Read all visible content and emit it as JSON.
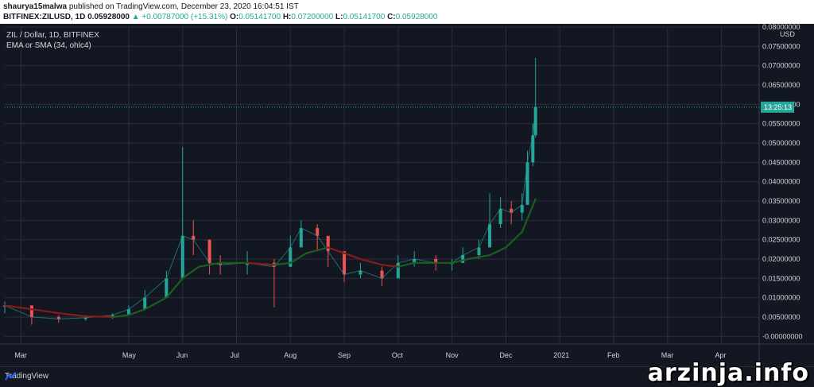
{
  "header": {
    "author": "shaurya15malwa",
    "published": "published on TradingView.com, December 23, 2020 16:04:51 IST",
    "symbol": "BITFINEX:ZILUSD, 1D",
    "last": "0.05928000",
    "change": "▲ +0.00787000 (+15.31%)",
    "o_label": "O:",
    "o": "0.05141700",
    "h_label": "H:",
    "h": "0.07200000",
    "l_label": "L:",
    "l": "0.05141700",
    "c_label": "C:",
    "c": "0.05928000"
  },
  "legend": {
    "title": "ZIL / Dollar, 1D, BITFINEX",
    "indicator": "EMA or SMA (34, ohlc4)"
  },
  "footer": {
    "brand": "TradingView",
    "watermark": "arzinja.info"
  },
  "colors": {
    "bg": "#131722",
    "grid": "#2a2e39",
    "up": "#26a69a",
    "down": "#ef5350",
    "ma_green": "#1b5e20",
    "ma_red": "#8b1a1a",
    "axis_text": "#d1d4dc",
    "price_tag": "#26a69a"
  },
  "chart_data": {
    "type": "line",
    "currency": "USD",
    "price_tag": "13:25:13",
    "current_price": 0.05928,
    "y_ticks": [
      "0.08000000",
      "0.07500000",
      "0.07000000",
      "0.06500000",
      "0.06000000",
      "0.05500000",
      "0.05000000",
      "0.04500000",
      "0.04000000",
      "0.03500000",
      "0.03000000",
      "0.02500000",
      "0.02000000",
      "0.01500000",
      "0.01000000",
      "0.00500000",
      "-0.00000000"
    ],
    "ylim": [
      -0.002,
      0.08
    ],
    "x_ticks": [
      "Mar",
      "May",
      "Jun",
      "Jul",
      "Aug",
      "Sep",
      "Oct",
      "Nov",
      "Dec",
      "2021",
      "Feb",
      "Mar",
      "Apr"
    ],
    "x_tick_pos": [
      0.3,
      2.3,
      3.3,
      4.3,
      5.3,
      6.3,
      7.3,
      8.3,
      9.3,
      10.3,
      11.3,
      12.3,
      13.3
    ],
    "xlim": [
      0,
      14
    ],
    "price_series": {
      "x": [
        0,
        0.5,
        1.0,
        1.5,
        2.0,
        2.3,
        2.6,
        3.0,
        3.3,
        3.5,
        3.8,
        4.0,
        4.5,
        5.0,
        5.3,
        5.5,
        5.8,
        6.0,
        6.3,
        6.6,
        7.0,
        7.3,
        7.6,
        8.0,
        8.3,
        8.5,
        8.8,
        9.0,
        9.2,
        9.4,
        9.6,
        9.7,
        9.8,
        9.85
      ],
      "close": [
        0.008,
        0.005,
        0.0045,
        0.0048,
        0.0055,
        0.007,
        0.01,
        0.015,
        0.026,
        0.025,
        0.019,
        0.0185,
        0.019,
        0.018,
        0.023,
        0.028,
        0.026,
        0.022,
        0.016,
        0.017,
        0.015,
        0.019,
        0.02,
        0.019,
        0.019,
        0.021,
        0.023,
        0.029,
        0.033,
        0.032,
        0.034,
        0.045,
        0.052,
        0.0593
      ],
      "high": [
        0.009,
        0.006,
        0.0055,
        0.0055,
        0.006,
        0.008,
        0.012,
        0.017,
        0.049,
        0.03,
        0.022,
        0.021,
        0.022,
        0.02,
        0.026,
        0.03,
        0.029,
        0.024,
        0.019,
        0.019,
        0.018,
        0.021,
        0.022,
        0.021,
        0.02,
        0.023,
        0.025,
        0.037,
        0.036,
        0.035,
        0.037,
        0.048,
        0.055,
        0.072
      ],
      "low": [
        0.006,
        0.003,
        0.0035,
        0.004,
        0.0045,
        0.006,
        0.009,
        0.013,
        0.022,
        0.021,
        0.016,
        0.016,
        0.016,
        0.0075,
        0.018,
        0.024,
        0.022,
        0.018,
        0.014,
        0.015,
        0.013,
        0.016,
        0.018,
        0.017,
        0.017,
        0.019,
        0.02,
        0.024,
        0.028,
        0.029,
        0.03,
        0.038,
        0.044,
        0.0514
      ]
    },
    "ma_series": {
      "name": "EMA or SMA (34, ohlc4)",
      "x": [
        0,
        0.5,
        1.0,
        1.5,
        2.0,
        2.3,
        2.6,
        3.0,
        3.3,
        3.6,
        4.0,
        4.5,
        5.0,
        5.3,
        5.6,
        6.0,
        6.3,
        6.6,
        7.0,
        7.3,
        7.6,
        8.0,
        8.3,
        8.6,
        9.0,
        9.3,
        9.6,
        9.85
      ],
      "values": [
        0.008,
        0.007,
        0.006,
        0.0052,
        0.005,
        0.0055,
        0.007,
        0.01,
        0.015,
        0.018,
        0.019,
        0.019,
        0.0185,
        0.019,
        0.0215,
        0.023,
        0.0215,
        0.02,
        0.0185,
        0.018,
        0.019,
        0.019,
        0.019,
        0.02,
        0.021,
        0.023,
        0.027,
        0.0355
      ]
    }
  }
}
